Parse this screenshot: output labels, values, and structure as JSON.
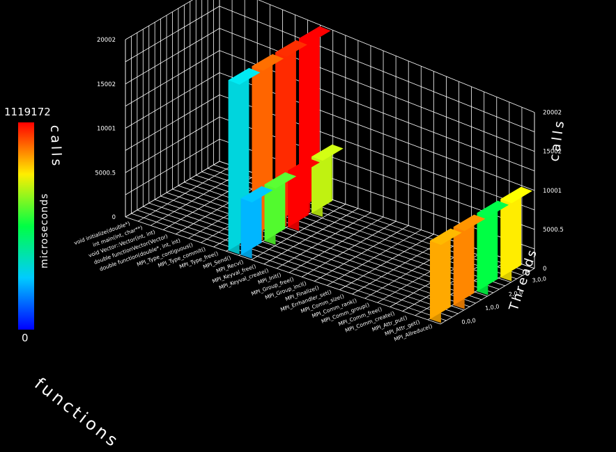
{
  "colorbar": {
    "max_label": "1119172",
    "min_label": "0",
    "title": "microseconds",
    "max_value": 1119172,
    "min_value": 0
  },
  "axes": {
    "z_label_left": "calls",
    "z_label_right": "calls",
    "y_label": "Threads",
    "x_label": "functions"
  },
  "chart_data": {
    "type": "bar",
    "title": "",
    "z_label": "calls",
    "zlim": [
      0,
      20002
    ],
    "z_ticks": [
      "0",
      "5000.5",
      "10001",
      "15002",
      "20002"
    ],
    "grid": true,
    "threads": [
      "0,0,0",
      "1,0,0",
      "2,0,0",
      "3,0,0"
    ],
    "functions": [
      "void initialize(double*)",
      "int main(int, char**)",
      "void Vector::Vector(int, int)",
      "double functionVector(Vector)",
      "double function(double*, int, int)",
      "MPI_Type_contiguous()",
      "MPI_Type_commit()",
      "MPI_Type_free()",
      "MPI_Send()",
      "MPI_Recv()",
      "MPI_Keyval_free()",
      "MPI_Keyval_create()",
      "MPI_Init()",
      "MPI_Group_free()",
      "MPI_Group_incl()",
      "MPI_Finalize()",
      "MPI_Errhandler_set()",
      "MPI_Comm_size()",
      "MPI_Comm_rank()",
      "MPI_Comm_group()",
      "MPI_Comm_free()",
      "MPI_Comm_create()",
      "MPI_Attr_put()",
      "MPI_Attr_get()",
      "MPI_Allreduce()"
    ],
    "bars": [
      {
        "function": 8,
        "thread": 0,
        "calls": 20002,
        "microseconds": 330000
      },
      {
        "function": 8,
        "thread": 1,
        "calls": 20002,
        "microseconds": 1000000
      },
      {
        "function": 8,
        "thread": 2,
        "calls": 20002,
        "microseconds": 1070000
      },
      {
        "function": 8,
        "thread": 3,
        "calls": 20002,
        "microseconds": 1119172
      },
      {
        "function": 9,
        "thread": 0,
        "calls": 6667,
        "microseconds": 250000
      },
      {
        "function": 9,
        "thread": 1,
        "calls": 6667,
        "microseconds": 650000
      },
      {
        "function": 9,
        "thread": 2,
        "calls": 6667,
        "microseconds": 1119172
      },
      {
        "function": 9,
        "thread": 3,
        "calls": 6667,
        "microseconds": 770000
      },
      {
        "function": 24,
        "thread": 0,
        "calls": 10001,
        "microseconds": 920000
      },
      {
        "function": 24,
        "thread": 1,
        "calls": 10001,
        "microseconds": 960000
      },
      {
        "function": 24,
        "thread": 2,
        "calls": 10001,
        "microseconds": 560000
      },
      {
        "function": 24,
        "thread": 3,
        "calls": 10001,
        "microseconds": 840000
      }
    ]
  }
}
